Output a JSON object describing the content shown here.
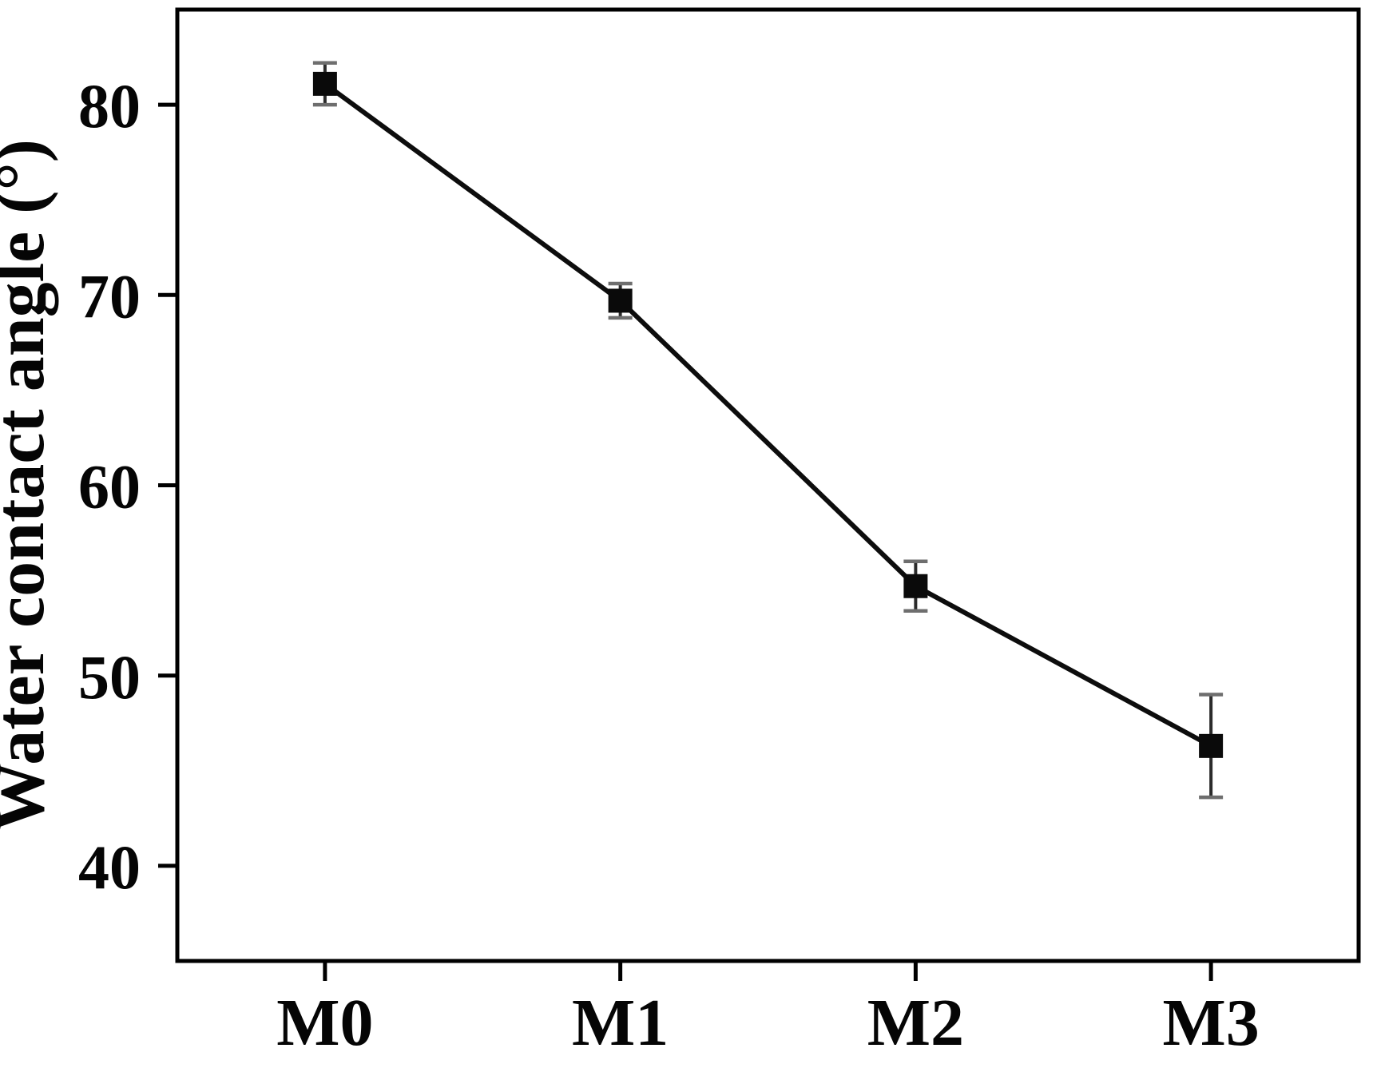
{
  "figure": {
    "background": "#ffffff"
  },
  "chart_data": {
    "type": "line",
    "categories": [
      "M0",
      "M1",
      "M2",
      "M3"
    ],
    "series": [
      {
        "name": "Water contact angle",
        "values": [
          81.1,
          69.7,
          54.7,
          46.3
        ],
        "errors": [
          1.1,
          0.9,
          1.3,
          2.7
        ]
      }
    ],
    "title": "",
    "xlabel": "",
    "ylabel": "Water contact angle (°)",
    "ylim": [
      35,
      85
    ],
    "yticks": [
      40,
      50,
      60,
      70,
      80
    ],
    "grid": false,
    "legend_position": "none",
    "marker": "filled-square",
    "colors": {
      "line": "#0d0d0d",
      "marker": "#0a0a0a",
      "error_bar": "#2b2b2b",
      "error_cap": "#6e6e6e",
      "axis": "#000000",
      "tick_label": "#050505",
      "background": "#ffffff"
    }
  }
}
